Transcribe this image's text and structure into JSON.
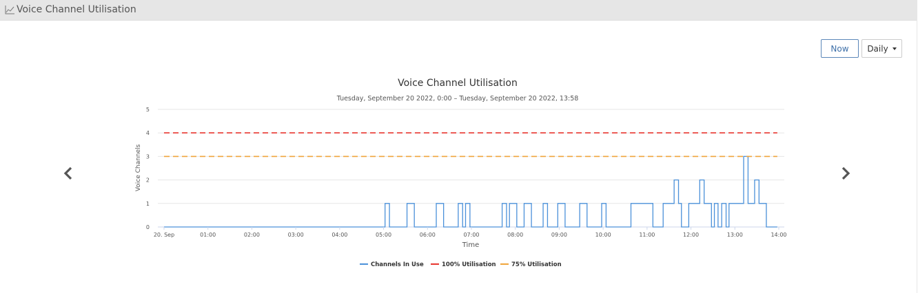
{
  "header": {
    "title": "Voice Channel Utilisation",
    "icon": "line-chart-icon"
  },
  "controls": {
    "now_label": "Now",
    "period_label": "Daily"
  },
  "nav": {
    "prev_icon": "chevron-left-icon",
    "next_icon": "chevron-right-icon"
  },
  "colors": {
    "channels": "#4a90d9",
    "full": "#e8352e",
    "three_quarter": "#f0a43a"
  },
  "chart_data": {
    "type": "line",
    "title": "Voice Channel Utilisation",
    "subtitle": "Tuesday, September 20 2022, 0:00 – Tuesday, September 20 2022, 13:58",
    "xlabel": "Time",
    "ylabel": "Voice Channels",
    "ylim": [
      0,
      5
    ],
    "xlim": [
      "2022-09-20 00:00",
      "2022-09-20 14:00"
    ],
    "x_ticks": [
      "20. Sep",
      "01:00",
      "02:00",
      "03:00",
      "04:00",
      "05:00",
      "06:00",
      "07:00",
      "08:00",
      "09:00",
      "10:00",
      "11:00",
      "12:00",
      "13:00",
      "14:00"
    ],
    "y_ticks": [
      "0",
      "1",
      "2",
      "3",
      "4",
      "5"
    ],
    "grid": "horizontal",
    "legend_position": "bottom-center",
    "series": [
      {
        "name": "Channels In Use",
        "step": true,
        "points": [
          [
            "00:00",
            0
          ],
          [
            "05:00",
            0
          ],
          [
            "05:02",
            1
          ],
          [
            "05:08",
            0
          ],
          [
            "05:32",
            1
          ],
          [
            "05:42",
            0
          ],
          [
            "06:12",
            1
          ],
          [
            "06:22",
            0
          ],
          [
            "06:42",
            1
          ],
          [
            "06:48",
            0
          ],
          [
            "06:52",
            1
          ],
          [
            "06:58",
            0
          ],
          [
            "07:42",
            1
          ],
          [
            "07:48",
            0
          ],
          [
            "07:52",
            1
          ],
          [
            "08:02",
            0
          ],
          [
            "08:12",
            1
          ],
          [
            "08:22",
            0
          ],
          [
            "08:38",
            1
          ],
          [
            "08:44",
            0
          ],
          [
            "08:58",
            1
          ],
          [
            "09:08",
            0
          ],
          [
            "09:28",
            1
          ],
          [
            "09:38",
            0
          ],
          [
            "09:58",
            1
          ],
          [
            "10:04",
            0
          ],
          [
            "10:38",
            1
          ],
          [
            "11:08",
            0
          ],
          [
            "11:22",
            1
          ],
          [
            "11:37",
            2
          ],
          [
            "11:43",
            1
          ],
          [
            "11:47",
            0
          ],
          [
            "11:57",
            1
          ],
          [
            "12:12",
            2
          ],
          [
            "12:18",
            1
          ],
          [
            "12:28",
            0
          ],
          [
            "12:32",
            1
          ],
          [
            "12:37",
            0
          ],
          [
            "12:42",
            1
          ],
          [
            "12:48",
            0
          ],
          [
            "12:52",
            1
          ],
          [
            "13:12",
            3
          ],
          [
            "13:18",
            1
          ],
          [
            "13:27",
            2
          ],
          [
            "13:33",
            1
          ],
          [
            "13:43",
            0
          ],
          [
            "13:58",
            0
          ]
        ]
      },
      {
        "name": "100% Utilisation",
        "dashed": true,
        "points": [
          [
            "00:00",
            4
          ],
          [
            "13:58",
            4
          ]
        ]
      },
      {
        "name": "75% Utilisation",
        "dashed": true,
        "points": [
          [
            "00:00",
            3
          ],
          [
            "13:58",
            3
          ]
        ]
      }
    ]
  }
}
